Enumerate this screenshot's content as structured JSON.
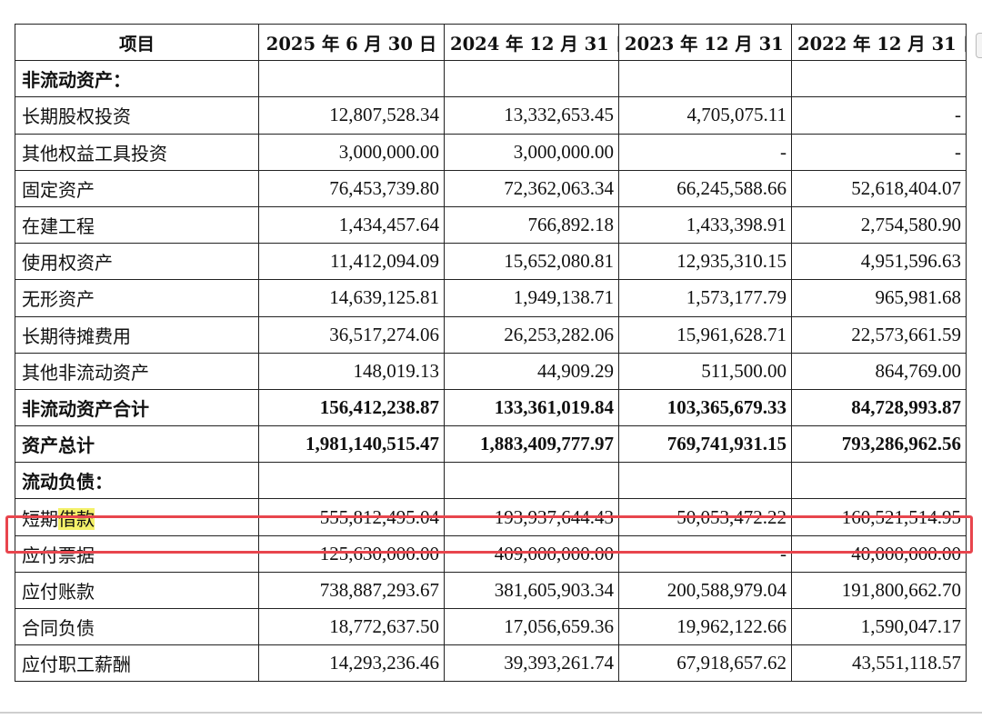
{
  "table": {
    "headers": [
      "项目",
      "2025 年 6 月 30 日",
      "2024 年 12 月 31 日",
      "2023 年 12 月 31 日",
      "2022 年 12 月 31 日"
    ],
    "rows": [
      {
        "label": "非流动资产：",
        "values": [
          "",
          "",
          "",
          ""
        ],
        "type": "section"
      },
      {
        "label": "长期股权投资",
        "values": [
          "12,807,528.34",
          "13,332,653.45",
          "4,705,075.11",
          "-"
        ],
        "type": "normal"
      },
      {
        "label": "其他权益工具投资",
        "values": [
          "3,000,000.00",
          "3,000,000.00",
          "-",
          "-"
        ],
        "type": "normal"
      },
      {
        "label": "固定资产",
        "values": [
          "76,453,739.80",
          "72,362,063.34",
          "66,245,588.66",
          "52,618,404.07"
        ],
        "type": "normal"
      },
      {
        "label": "在建工程",
        "values": [
          "1,434,457.64",
          "766,892.18",
          "1,433,398.91",
          "2,754,580.90"
        ],
        "type": "normal"
      },
      {
        "label": "使用权资产",
        "values": [
          "11,412,094.09",
          "15,652,080.81",
          "12,935,310.15",
          "4,951,596.63"
        ],
        "type": "normal"
      },
      {
        "label": "无形资产",
        "values": [
          "14,639,125.81",
          "1,949,138.71",
          "1,573,177.79",
          "965,981.68"
        ],
        "type": "normal"
      },
      {
        "label": "长期待摊费用",
        "values": [
          "36,517,274.06",
          "26,253,282.06",
          "15,961,628.71",
          "22,573,661.59"
        ],
        "type": "normal"
      },
      {
        "label": "其他非流动资产",
        "values": [
          "148,019.13",
          "44,909.29",
          "511,500.00",
          "864,769.00"
        ],
        "type": "normal"
      },
      {
        "label": "非流动资产合计",
        "values": [
          "156,412,238.87",
          "133,361,019.84",
          "103,365,679.33",
          "84,728,993.87"
        ],
        "type": "bold"
      },
      {
        "label": "资产总计",
        "values": [
          "1,981,140,515.47",
          "1,883,409,777.97",
          "769,741,931.15",
          "793,286,962.56"
        ],
        "type": "bold"
      },
      {
        "label": "流动负债：",
        "values": [
          "",
          "",
          "",
          ""
        ],
        "type": "section"
      },
      {
        "label_parts": [
          "短期",
          "借款"
        ],
        "label": "短期借款",
        "values": [
          "555,812,495.04",
          "193,937,644.43",
          "50,053,472.22",
          "160,521,514.95"
        ],
        "type": "highlighted"
      },
      {
        "label": "应付票据",
        "values": [
          "125,630,000.00",
          "409,000,000.00",
          "-",
          "40,000,000.00"
        ],
        "type": "normal"
      },
      {
        "label": "应付账款",
        "values": [
          "738,887,293.67",
          "381,605,903.34",
          "200,588,979.04",
          "191,800,662.70"
        ],
        "type": "normal"
      },
      {
        "label": "合同负债",
        "values": [
          "18,772,637.50",
          "17,056,659.36",
          "19,962,122.66",
          "1,590,047.17"
        ],
        "type": "normal"
      },
      {
        "label": "应付职工薪酬",
        "values": [
          "14,293,236.46",
          "39,393,261.74",
          "67,918,657.62",
          "43,551,118.57"
        ],
        "type": "normal"
      }
    ]
  },
  "colors": {
    "highlight_box": "#e8454d",
    "text_highlight": "#f4f16a"
  }
}
